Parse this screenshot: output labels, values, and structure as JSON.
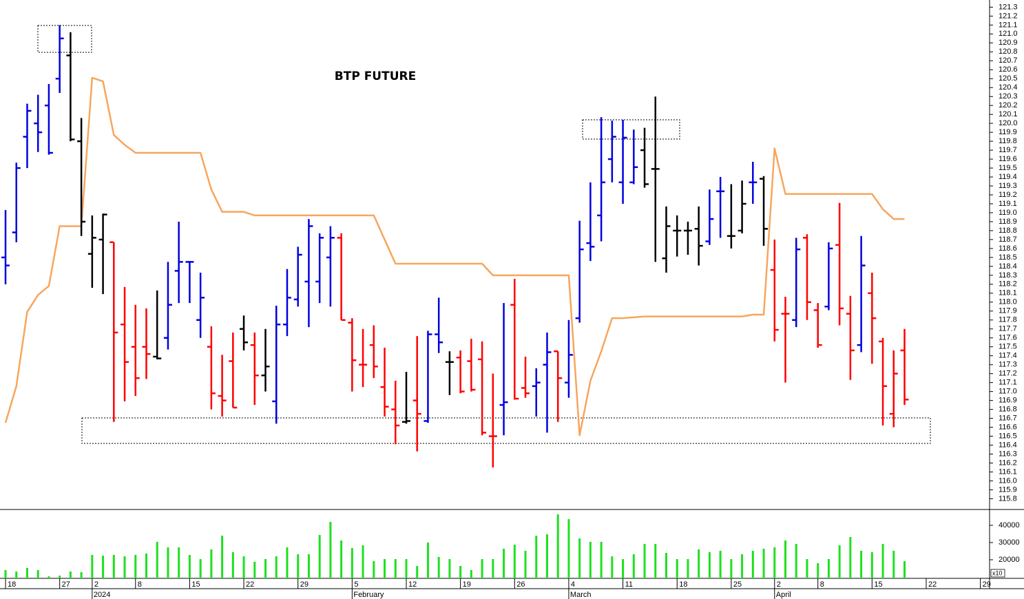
{
  "chart_data": [
    {
      "type": "ohlc",
      "title": "BTP FUTURE",
      "x": [
        0,
        1,
        2,
        3,
        4,
        5,
        6,
        7,
        8,
        9,
        10,
        11,
        12,
        13,
        14,
        15,
        16,
        17,
        18,
        19,
        20,
        21,
        22,
        23,
        24,
        25,
        26,
        27,
        28,
        29,
        30,
        31,
        32,
        33,
        34,
        35,
        36,
        37,
        38,
        39,
        40,
        41,
        42,
        43,
        44,
        45,
        46,
        47,
        48,
        49,
        50,
        51,
        52,
        53,
        54,
        55,
        56,
        57,
        58,
        59,
        60,
        61,
        62,
        63,
        64,
        65,
        66,
        67,
        68,
        69,
        70,
        71,
        72,
        73,
        74,
        75,
        76,
        77,
        78,
        79,
        80,
        81,
        82,
        83
      ],
      "open": [
        118.5,
        118.78,
        119.85,
        120.0,
        120.2,
        120.5,
        120.76,
        119.8,
        118.54,
        118.7,
        118.67,
        117.75,
        117.5,
        117.5,
        117.39,
        117.6,
        118.35,
        118.45,
        117.8,
        117.5,
        116.95,
        117.34,
        117.7,
        117.52,
        117.18,
        116.89,
        117.75,
        118.03,
        118.23,
        118.23,
        118.5,
        118.72,
        117.77,
        117.3,
        117.52,
        117.05,
        116.8,
        116.66,
        116.9,
        116.67,
        117.64,
        117.33,
        117.38,
        117.34,
        117.36,
        116.5,
        116.85,
        117.97,
        117.04,
        117.06,
        117.3,
        117.45,
        117.1,
        117.82,
        118.66,
        118.97,
        119.6,
        119.34,
        119.34,
        119.7,
        119.49,
        118.49,
        118.8,
        118.8,
        118.82,
        118.68,
        119.24,
        118.74,
        118.8,
        119.34,
        119.38,
        118.36,
        117.87,
        117.8,
        118.72,
        117.91,
        117.95,
        118.64,
        117.87,
        117.52,
        118.1,
        117.56,
        116.75,
        117.46
      ],
      "high": [
        119.03,
        119.56,
        120.22,
        120.32,
        120.44,
        121.1,
        121.02,
        120.06,
        118.97,
        118.99,
        118.67,
        118.17,
        117.97,
        117.93,
        118.13,
        118.45,
        118.9,
        118.46,
        118.33,
        117.73,
        117.41,
        117.66,
        117.85,
        117.66,
        117.7,
        117.96,
        118.37,
        118.62,
        118.93,
        118.77,
        118.85,
        118.77,
        117.82,
        117.7,
        117.74,
        117.49,
        117.12,
        117.22,
        117.62,
        117.68,
        118.05,
        117.45,
        117.46,
        117.59,
        117.56,
        117.2,
        117.99,
        118.26,
        117.39,
        117.26,
        117.66,
        117.45,
        117.8,
        118.91,
        119.34,
        120.07,
        120.03,
        120.04,
        119.93,
        119.95,
        120.3,
        119.07,
        118.97,
        118.9,
        119.07,
        119.26,
        119.4,
        119.32,
        119.36,
        119.57,
        119.41,
        118.7,
        118.06,
        118.72,
        118.76,
        117.99,
        118.67,
        119.11,
        118.07,
        118.74,
        118.33,
        117.6,
        117.46,
        117.7
      ],
      "low": [
        118.2,
        118.67,
        119.5,
        119.68,
        119.65,
        120.34,
        119.8,
        118.74,
        118.16,
        118.09,
        116.66,
        116.89,
        116.95,
        117.14,
        117.36,
        117.47,
        117.99,
        117.99,
        117.6,
        116.8,
        116.72,
        116.82,
        117.46,
        116.85,
        117.0,
        116.64,
        117.62,
        117.95,
        117.72,
        117.99,
        117.95,
        117.8,
        117.0,
        117.05,
        117.15,
        116.72,
        116.41,
        116.64,
        116.33,
        116.65,
        117.43,
        116.96,
        116.98,
        117.0,
        116.51,
        116.15,
        116.51,
        116.91,
        116.93,
        116.72,
        116.54,
        116.66,
        116.93,
        117.77,
        118.46,
        118.68,
        119.34,
        119.1,
        119.32,
        119.28,
        118.45,
        118.33,
        118.51,
        118.53,
        118.41,
        118.64,
        118.72,
        118.6,
        118.77,
        119.1,
        118.63,
        117.56,
        117.1,
        117.72,
        117.8,
        117.49,
        117.91,
        117.74,
        117.13,
        117.44,
        117.31,
        116.62,
        116.6,
        116.85
      ],
      "close": [
        118.41,
        119.5,
        120.14,
        119.9,
        119.67,
        120.95,
        119.82,
        118.9,
        118.72,
        118.98,
        117.66,
        117.33,
        117.15,
        117.42,
        117.37,
        117.97,
        118.45,
        118.45,
        118.05,
        116.98,
        116.9,
        116.82,
        117.55,
        117.18,
        117.28,
        117.75,
        118.05,
        118.53,
        118.85,
        118.72,
        118.72,
        117.8,
        117.35,
        117.3,
        117.28,
        116.83,
        116.62,
        116.67,
        116.75,
        117.64,
        117.55,
        117.33,
        117.0,
        117.02,
        116.54,
        116.5,
        116.88,
        116.92,
        116.98,
        117.1,
        117.44,
        117.15,
        117.41,
        118.59,
        118.62,
        119.34,
        119.85,
        119.84,
        119.51,
        119.32,
        119.49,
        118.85,
        118.8,
        118.8,
        118.63,
        118.93,
        119.24,
        118.74,
        119.1,
        119.34,
        118.82,
        117.69,
        117.87,
        118.59,
        118.0,
        117.52,
        118.6,
        117.93,
        117.46,
        118.41,
        117.82,
        117.06,
        117.2,
        116.91
      ],
      "colors": [
        "#0000e0",
        "#0000e0",
        "#0000e0",
        "#0000e0",
        "#0000e0",
        "#0000e0",
        "#000000",
        "#000000",
        "#000000",
        "#000000",
        "#ff0000",
        "#ff0000",
        "#ff0000",
        "#ff0000",
        "#000000",
        "#0000e0",
        "#0000e0",
        "#0000e0",
        "#0000e0",
        "#ff0000",
        "#ff0000",
        "#ff0000",
        "#000000",
        "#ff0000",
        "#000000",
        "#0000e0",
        "#0000e0",
        "#0000e0",
        "#0000e0",
        "#0000e0",
        "#0000e0",
        "#ff0000",
        "#ff0000",
        "#ff0000",
        "#ff0000",
        "#ff0000",
        "#ff0000",
        "#000000",
        "#ff0000",
        "#0000e0",
        "#0000e0",
        "#000000",
        "#ff0000",
        "#ff0000",
        "#ff0000",
        "#ff0000",
        "#0000e0",
        "#ff0000",
        "#ff0000",
        "#0000e0",
        "#0000e0",
        "#ff0000",
        "#0000e0",
        "#0000e0",
        "#0000e0",
        "#0000e0",
        "#0000e0",
        "#0000e0",
        "#0000e0",
        "#000000",
        "#000000",
        "#000000",
        "#000000",
        "#000000",
        "#000000",
        "#0000e0",
        "#0000e0",
        "#000000",
        "#000000",
        "#0000e0",
        "#000000",
        "#ff0000",
        "#ff0000",
        "#0000e0",
        "#ff0000",
        "#ff0000",
        "#0000e0",
        "#ff0000",
        "#ff0000",
        "#0000e0",
        "#ff0000",
        "#ff0000",
        "#ff0000",
        "#ff0000"
      ],
      "overlay": {
        "type": "line",
        "color": "#f8a55c",
        "values": [
          116.65,
          117.06,
          117.89,
          118.08,
          118.18,
          118.85,
          118.85,
          118.85,
          120.51,
          120.47,
          119.87,
          119.76,
          119.67,
          119.67,
          119.67,
          119.67,
          119.67,
          119.67,
          119.67,
          119.26,
          119.01,
          119.01,
          119.01,
          118.97,
          118.97,
          118.97,
          118.97,
          118.97,
          118.97,
          118.97,
          118.97,
          118.97,
          118.97,
          118.97,
          118.97,
          118.7,
          118.43,
          118.43,
          118.43,
          118.43,
          118.43,
          118.43,
          118.43,
          118.43,
          118.43,
          118.3,
          118.3,
          118.3,
          118.3,
          118.3,
          118.3,
          118.3,
          118.3,
          116.51,
          117.12,
          117.45,
          117.82,
          117.82,
          117.83,
          117.84,
          117.84,
          117.84,
          117.84,
          117.84,
          117.84,
          117.84,
          117.84,
          117.84,
          117.84,
          117.86,
          117.86,
          119.72,
          119.21,
          119.21,
          119.21,
          119.21,
          119.21,
          119.21,
          119.21,
          119.21,
          119.21,
          119.04,
          118.93,
          118.93
        ]
      },
      "xlim": [
        -0.51,
        90.85
      ],
      "xticks": [
        {
          "value": 0,
          "label": "18"
        },
        {
          "value": 5,
          "label": "27"
        },
        {
          "value": 8,
          "label": "2"
        },
        {
          "value": 12,
          "label": "8"
        },
        {
          "value": 17,
          "label": "15"
        },
        {
          "value": 22,
          "label": "22"
        },
        {
          "value": 27,
          "label": "29"
        },
        {
          "value": 32,
          "label": "5"
        },
        {
          "value": 37,
          "label": "12"
        },
        {
          "value": 42,
          "label": "19"
        },
        {
          "value": 47,
          "label": "26"
        },
        {
          "value": 52,
          "label": "4"
        },
        {
          "value": 57,
          "label": "11"
        },
        {
          "value": 62,
          "label": "18"
        },
        {
          "value": 67,
          "label": "25"
        },
        {
          "value": 71,
          "label": "2"
        },
        {
          "value": 75,
          "label": "8"
        },
        {
          "value": 80,
          "label": "15"
        },
        {
          "value": 85,
          "label": "22"
        },
        {
          "value": 90,
          "label": "29"
        }
      ],
      "month_ticks": [
        {
          "value": 8,
          "label": "2024"
        },
        {
          "value": 32,
          "label": "February"
        },
        {
          "value": 52,
          "label": "March"
        },
        {
          "value": 71,
          "label": "April"
        }
      ],
      "ylim": [
        115.68,
        121.38
      ],
      "yticks": [
        115.8,
        115.9,
        {
          "value": 116,
          "label": "116.0"
        },
        116.1,
        116.2,
        116.3,
        116.4,
        116.5,
        116.6,
        116.7,
        116.8,
        116.9,
        {
          "value": 117,
          "label": "117.0"
        },
        117.1,
        117.2,
        117.3,
        117.4,
        117.5,
        117.6,
        117.7,
        117.8,
        117.9,
        {
          "value": 118,
          "label": "118.0"
        },
        118.1,
        118.2,
        118.3,
        118.4,
        118.5,
        118.6,
        118.7,
        118.8,
        118.9,
        {
          "value": 119,
          "label": "119.0"
        },
        119.1,
        119.2,
        119.3,
        119.4,
        119.5,
        119.6,
        119.7,
        119.8,
        119.9,
        {
          "value": 120,
          "label": "120.0"
        },
        120.1,
        120.2,
        120.3,
        120.4,
        120.5,
        120.6,
        120.7,
        120.8,
        120.9,
        {
          "value": 121,
          "label": "121.0"
        },
        121.1,
        121.2,
        121.3
      ]
    },
    {
      "type": "bar",
      "values": [
        14000,
        13200,
        15200,
        14000,
        10400,
        10800,
        13200,
        12800,
        22800,
        22400,
        22800,
        22000,
        22800,
        23600,
        30400,
        27200,
        27200,
        22800,
        20400,
        26000,
        34000,
        24400,
        22000,
        18800,
        20400,
        22000,
        27200,
        23200,
        23200,
        34400,
        42000,
        31200,
        26800,
        28400,
        19200,
        20400,
        20400,
        20400,
        16400,
        30000,
        21600,
        20400,
        16400,
        14000,
        20400,
        20400,
        26400,
        28800,
        25200,
        34000,
        34800,
        46400,
        43600,
        32400,
        30400,
        30400,
        22000,
        20400,
        23200,
        29200,
        29200,
        24000,
        20400,
        20400,
        26000,
        24400,
        25200,
        20400,
        23200,
        25200,
        26400,
        27200,
        31200,
        29200,
        20400,
        18000,
        20400,
        28400,
        33200,
        25200,
        24400,
        29200,
        25200,
        19200
      ],
      "color": "#1ee01e",
      "ylim": [
        9200,
        48400
      ],
      "yticks": [
        20000,
        30000,
        40000
      ],
      "unit_label": "x10"
    }
  ]
}
